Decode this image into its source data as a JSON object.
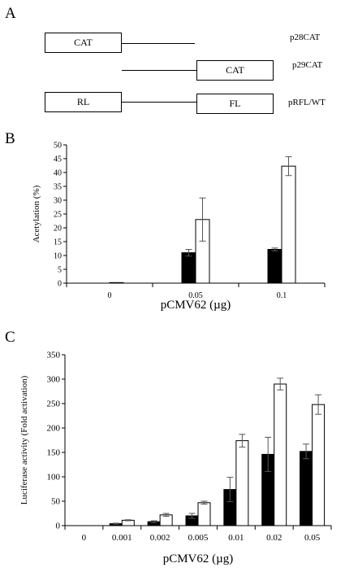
{
  "panels": {
    "a": {
      "letter": "A",
      "constructs": [
        {
          "name": "p28CAT",
          "box": "CAT"
        },
        {
          "name": "p29CAT",
          "box": "CAT"
        },
        {
          "name": "pRFL/WT",
          "box_left": "RL",
          "box_right": "FL"
        }
      ]
    },
    "b": {
      "letter": "B"
    },
    "c": {
      "letter": "C"
    }
  },
  "chart_data": [
    {
      "type": "bar",
      "panel": "B",
      "categories": [
        "0",
        "0.05",
        "0.1"
      ],
      "series": [
        {
          "color": "#000000",
          "values": [
            0,
            11,
            12.2
          ],
          "errors": [
            0,
            1.2,
            0.5
          ]
        },
        {
          "color": "#ffffff",
          "values": [
            0.2,
            23,
            42.3
          ],
          "errors": [
            0,
            7.8,
            3.4
          ]
        }
      ],
      "xlabel": "pCMV62 (µg)",
      "ylabel": "Acetylation (%)",
      "ylim": [
        0,
        50
      ],
      "yticks": [
        "0",
        "5",
        "10",
        "15",
        "20",
        "25",
        "30",
        "35",
        "40",
        "45",
        "50"
      ],
      "grid": false
    },
    {
      "type": "bar",
      "panel": "C",
      "categories": [
        "0",
        "0.001",
        "0.002",
        "0.005",
        "0.01",
        "0.02",
        "0.05"
      ],
      "series": [
        {
          "color": "#000000",
          "values": [
            0,
            4,
            8,
            20,
            74,
            146,
            152
          ],
          "errors": [
            0,
            1,
            2,
            5,
            25,
            35,
            15
          ]
        },
        {
          "color": "#ffffff",
          "values": [
            0,
            11,
            22,
            47,
            174,
            290,
            248
          ],
          "errors": [
            0,
            1,
            3,
            3,
            13,
            12,
            20
          ]
        }
      ],
      "xlabel": "pCMV62 (µg)",
      "ylabel": "Luciferase activity (Fold activation)",
      "ylim": [
        0,
        350
      ],
      "yticks": [
        "0",
        "50",
        "100",
        "150",
        "200",
        "250",
        "300",
        "350"
      ],
      "grid": false
    }
  ]
}
